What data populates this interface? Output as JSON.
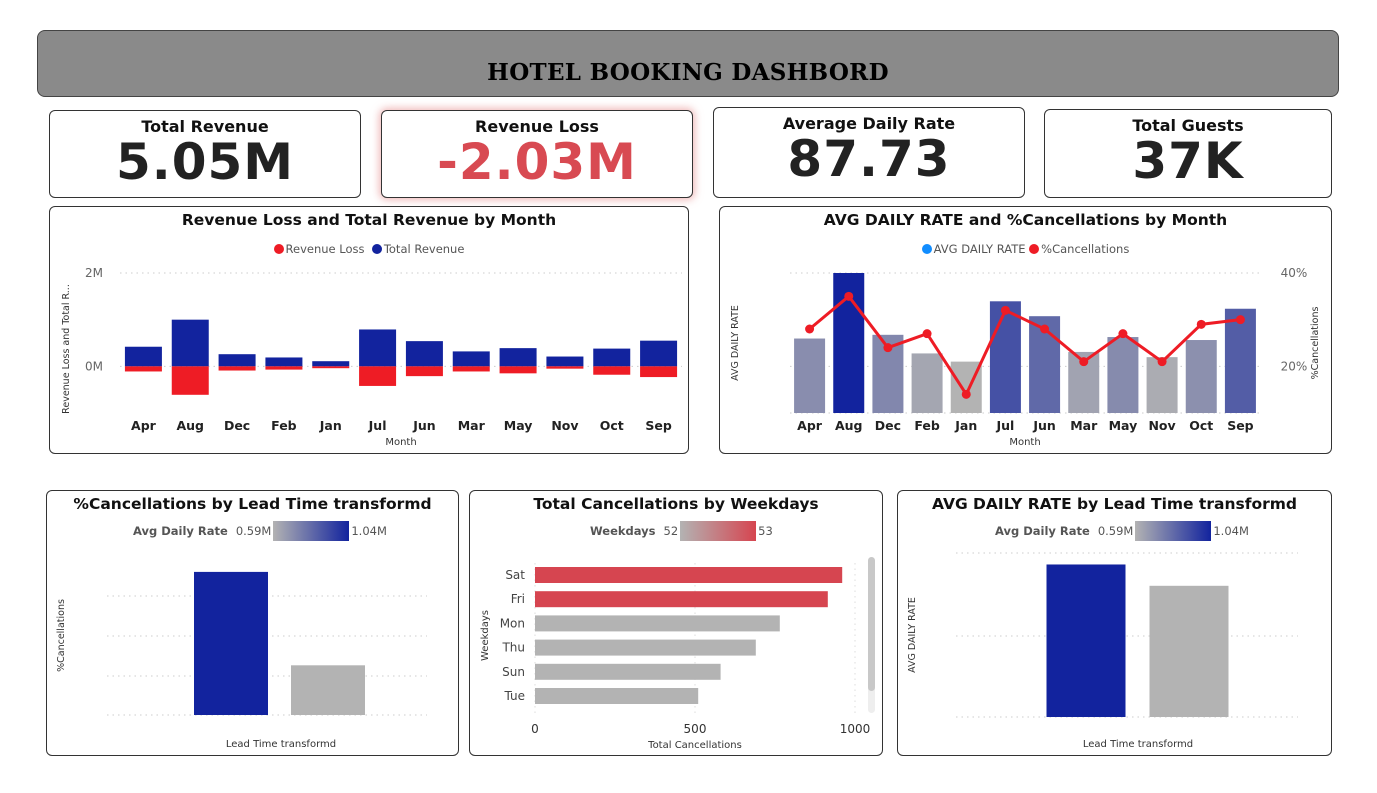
{
  "header": {
    "title": "HOTEL BOOKING DASHBORD"
  },
  "kpis": [
    {
      "label": "Total Revenue",
      "value": "5.05M"
    },
    {
      "label": "Revenue Loss",
      "value": "-2.03M"
    },
    {
      "label": "Average Daily Rate",
      "value": "87.73"
    },
    {
      "label": "Total Guests",
      "value": "37K"
    }
  ],
  "colors": {
    "navy": "#12239e",
    "red": "#ee1c25",
    "lineRed": "#ee1c25",
    "gray": "#b3b3b3",
    "salmon": "#d64550",
    "blueDot": "#118dff"
  },
  "chart_data": [
    {
      "type": "bar",
      "title": "Revenue Loss and Total Revenue by Month",
      "xlabel": "Month",
      "ylabel": "Revenue Loss and Total R...",
      "ytick_labels": [
        "2M",
        "0M"
      ],
      "ylim": [
        -1000000,
        2000000
      ],
      "legend": [
        "Revenue Loss",
        "Total  Revenue"
      ],
      "categories": [
        "Apr",
        "Aug",
        "Dec",
        "Feb",
        "Jan",
        "Jul",
        "Jun",
        "Mar",
        "May",
        "Nov",
        "Oct",
        "Sep"
      ],
      "series": [
        {
          "name": "Total  Revenue",
          "values": [
            420000,
            1000000,
            260000,
            190000,
            110000,
            790000,
            540000,
            320000,
            390000,
            210000,
            380000,
            550000
          ]
        },
        {
          "name": "Revenue Loss",
          "values": [
            -110000,
            -610000,
            -90000,
            -70000,
            -40000,
            -420000,
            -210000,
            -110000,
            -150000,
            -50000,
            -180000,
            -230000
          ]
        }
      ]
    },
    {
      "type": "bar",
      "title": "AVG DAILY RATE and %Cancellations by Month",
      "xlabel": "Month",
      "ylabel": "AVG DAILY RATE",
      "y2label": "%Cancellations",
      "y2tick_labels": [
        "40%",
        "20%"
      ],
      "y2lim": [
        10,
        40
      ],
      "legend": [
        "AVG DAILY RATE",
        "%Cancellations"
      ],
      "categories": [
        "Apr",
        "Aug",
        "Dec",
        "Feb",
        "Jan",
        "Jul",
        "Jun",
        "Mar",
        "May",
        "Nov",
        "Oct",
        "Sep"
      ],
      "series": [
        {
          "name": "AVG DAILY RATE",
          "values": [
            100,
            188,
            105,
            80,
            69,
            150,
            130,
            82,
            102,
            75,
            98,
            140
          ]
        },
        {
          "name": "%Cancellations",
          "values": [
            28,
            35,
            24,
            27,
            14,
            32,
            28,
            21,
            27,
            21,
            29,
            30
          ]
        }
      ]
    },
    {
      "type": "bar",
      "title": "%Cancellations by Lead Time transformd",
      "xlabel": "Lead Time transformd",
      "ylabel": "%Cancellations",
      "color_legend": {
        "label": "Avg Daily Rate",
        "min": "0.59M",
        "max": "1.04M"
      },
      "values": [
        0.36,
        0.125
      ],
      "ylim": [
        0,
        0.4
      ]
    },
    {
      "type": "bar",
      "title": "Total Cancellations by Weekdays",
      "xlabel": "Total Cancellations",
      "ylabel": "Weekdays",
      "color_legend": {
        "label": "Weekdays",
        "min": "52",
        "max": "53"
      },
      "categories": [
        "Sat",
        "Fri",
        "Mon",
        "Thu",
        "Sun",
        "Tue"
      ],
      "values": [
        960,
        915,
        765,
        690,
        580,
        510
      ],
      "xticks": [
        "0",
        "500",
        "1000"
      ],
      "xlim": [
        0,
        1000
      ]
    },
    {
      "type": "bar",
      "title": "AVG DAILY RATE by Lead Time transformd",
      "xlabel": "Lead Time transformd",
      "ylabel": "AVG DAILY RATE",
      "color_legend": {
        "label": "Avg Daily Rate",
        "min": "0.59M",
        "max": "1.04M"
      },
      "values": [
        93,
        80
      ],
      "ylim": [
        0,
        100
      ]
    }
  ]
}
